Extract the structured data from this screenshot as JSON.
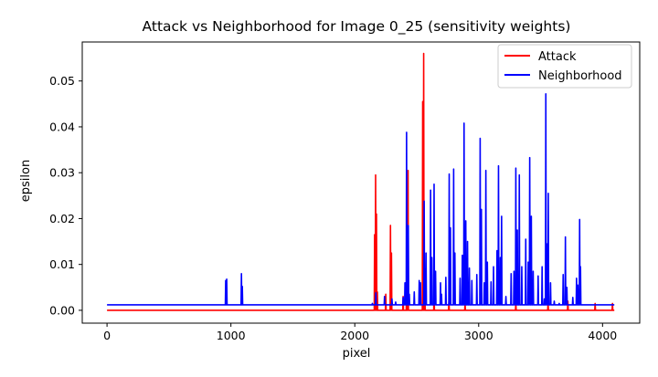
{
  "chart_data": {
    "type": "line",
    "title": "Attack vs Neighborhood for Image 0_25 (sensitivity weights)",
    "xlabel": "pixel",
    "ylabel": "epsilon",
    "xlim": [
      -200,
      4300
    ],
    "ylim": [
      -0.0028,
      0.0585
    ],
    "xticks": [
      0,
      1000,
      2000,
      3000,
      4000
    ],
    "xtick_labels": [
      "0",
      "1000",
      "2000",
      "3000",
      "4000"
    ],
    "yticks": [
      0.0,
      0.01,
      0.02,
      0.03,
      0.04,
      0.05
    ],
    "ytick_labels": [
      "0.00",
      "0.01",
      "0.02",
      "0.03",
      "0.04",
      "0.05"
    ],
    "grid": false,
    "legend_position": "top-right",
    "series": [
      {
        "name": "Attack",
        "color": "#ff0000",
        "baseline": 0.0,
        "x_range": [
          0,
          4095
        ],
        "spikes": [
          [
            2160,
            0.0165
          ],
          [
            2168,
            0.0295
          ],
          [
            2175,
            0.021
          ],
          [
            2182,
            0.004
          ],
          [
            2250,
            0.0035
          ],
          [
            2288,
            0.0185
          ],
          [
            2296,
            0.0125
          ],
          [
            2390,
            0.003
          ],
          [
            2418,
            0.004
          ],
          [
            2430,
            0.0305
          ],
          [
            2548,
            0.0455
          ],
          [
            2556,
            0.056
          ],
          [
            2565,
            0.009
          ],
          [
            2640,
            0.004
          ],
          [
            2760,
            0.002
          ],
          [
            2890,
            0.0015
          ],
          [
            3300,
            0.0015
          ],
          [
            3560,
            0.0015
          ],
          [
            3720,
            0.002
          ],
          [
            3940,
            0.0015
          ],
          [
            4080,
            0.0015
          ]
        ]
      },
      {
        "name": "Neighborhood",
        "color": "#0000ff",
        "baseline": 0.0012,
        "x_range": [
          0,
          4095
        ],
        "spikes": [
          [
            958,
            0.0065
          ],
          [
            966,
            0.0068
          ],
          [
            1085,
            0.008
          ],
          [
            1092,
            0.0052
          ],
          [
            2142,
            0.0015
          ],
          [
            2170,
            0.0038
          ],
          [
            2240,
            0.003
          ],
          [
            2300,
            0.0025
          ],
          [
            2330,
            0.0018
          ],
          [
            2390,
            0.0028
          ],
          [
            2405,
            0.006
          ],
          [
            2418,
            0.0388
          ],
          [
            2432,
            0.0185
          ],
          [
            2440,
            0.0035
          ],
          [
            2480,
            0.004
          ],
          [
            2520,
            0.0065
          ],
          [
            2530,
            0.006
          ],
          [
            2560,
            0.0238
          ],
          [
            2575,
            0.0125
          ],
          [
            2612,
            0.0262
          ],
          [
            2622,
            0.0115
          ],
          [
            2640,
            0.0275
          ],
          [
            2652,
            0.0085
          ],
          [
            2692,
            0.006
          ],
          [
            2700,
            0.0035
          ],
          [
            2735,
            0.0072
          ],
          [
            2762,
            0.0297
          ],
          [
            2772,
            0.018
          ],
          [
            2798,
            0.0308
          ],
          [
            2808,
            0.0125
          ],
          [
            2850,
            0.007
          ],
          [
            2868,
            0.012
          ],
          [
            2882,
            0.0408
          ],
          [
            2896,
            0.0195
          ],
          [
            2910,
            0.015
          ],
          [
            2925,
            0.0092
          ],
          [
            2945,
            0.0065
          ],
          [
            2985,
            0.0078
          ],
          [
            3012,
            0.0375
          ],
          [
            3022,
            0.022
          ],
          [
            3045,
            0.006
          ],
          [
            3058,
            0.0305
          ],
          [
            3070,
            0.0105
          ],
          [
            3100,
            0.0062
          ],
          [
            3120,
            0.0095
          ],
          [
            3148,
            0.013
          ],
          [
            3160,
            0.0315
          ],
          [
            3175,
            0.0115
          ],
          [
            3185,
            0.0205
          ],
          [
            3220,
            0.003
          ],
          [
            3262,
            0.008
          ],
          [
            3285,
            0.0085
          ],
          [
            3300,
            0.031
          ],
          [
            3312,
            0.0175
          ],
          [
            3328,
            0.0295
          ],
          [
            3348,
            0.0095
          ],
          [
            3380,
            0.0155
          ],
          [
            3400,
            0.0105
          ],
          [
            3412,
            0.0333
          ],
          [
            3425,
            0.0205
          ],
          [
            3440,
            0.0085
          ],
          [
            3480,
            0.0075
          ],
          [
            3512,
            0.0095
          ],
          [
            3530,
            0.0025
          ],
          [
            3542,
            0.0472
          ],
          [
            3555,
            0.0145
          ],
          [
            3562,
            0.0255
          ],
          [
            3580,
            0.006
          ],
          [
            3610,
            0.002
          ],
          [
            3650,
            0.0015
          ],
          [
            3682,
            0.0078
          ],
          [
            3700,
            0.016
          ],
          [
            3712,
            0.005
          ],
          [
            3760,
            0.0028
          ],
          [
            3790,
            0.007
          ],
          [
            3800,
            0.0055
          ],
          [
            3815,
            0.0198
          ],
          [
            3822,
            0.0095
          ]
        ]
      }
    ]
  }
}
